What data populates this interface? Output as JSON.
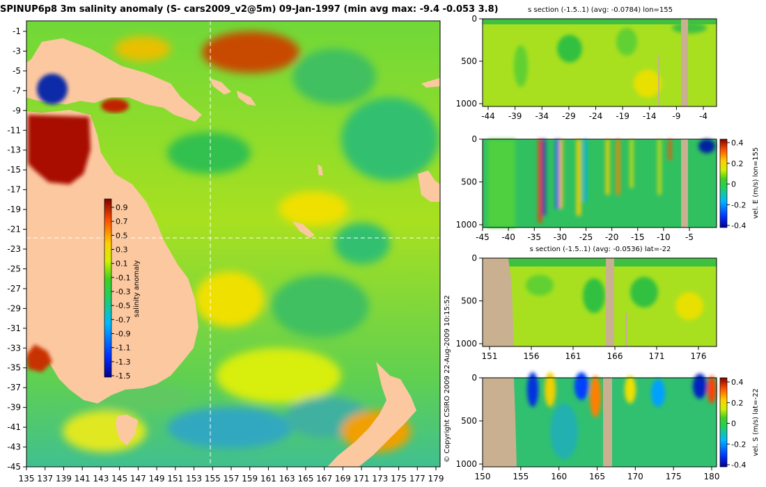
{
  "title": "SPINUP6p8 3m salinity anomaly (S- cars2009_v2@5m) 09-Jan-1997 (min avg max: -9.4 -0.053 3.8)",
  "copyright": "© Copyright CSIRO 2009   22-Aug-2009 10:15:52",
  "colors": {
    "land": "#fcc8a0",
    "section_land": "#c8b090",
    "crosshair": "#ffffff"
  },
  "map": {
    "lon_ticks": [
      "135",
      "137",
      "139",
      "141",
      "143",
      "145",
      "147",
      "149",
      "151",
      "153",
      "155",
      "157",
      "159",
      "161",
      "163",
      "165",
      "167",
      "169",
      "171",
      "173",
      "175",
      "177",
      "179"
    ],
    "lat_ticks": [
      "-1",
      "-3",
      "-5",
      "-7",
      "-9",
      "-11",
      "-13",
      "-15",
      "-17",
      "-19",
      "-21",
      "-23",
      "-25",
      "-27",
      "-29",
      "-31",
      "-33",
      "-35",
      "-37",
      "-39",
      "-41",
      "-43",
      "-45"
    ],
    "crosshair": {
      "lon": 155,
      "lat": -22
    },
    "colorbar": {
      "label": "salinity anomaly",
      "ticks": [
        "0.9",
        "0.7",
        "0.5",
        "0.3",
        "0.1",
        "-0.1",
        "-0.3",
        "-0.5",
        "-0.7",
        "-0.9",
        "-1.1",
        "-1.3",
        "-1.5"
      ]
    }
  },
  "sections": [
    {
      "title": "s section (-1.5..1) (avg: -0.0784) lon=155",
      "x_ticks": [
        "-44",
        "-39",
        "-34",
        "-29",
        "-24",
        "-19",
        "-14",
        "-9",
        "-4"
      ],
      "y_ticks": [
        "0",
        "500",
        "1000"
      ],
      "colorbar": null
    },
    {
      "title": "",
      "x_ticks": [
        "-45",
        "-40",
        "-35",
        "-30",
        "-25",
        "-20",
        "-15",
        "-10",
        "-5"
      ],
      "y_ticks": [
        "0",
        "500",
        "1000"
      ],
      "colorbar": {
        "label": "vel. E (m/s) lon=155",
        "ticks": [
          "0.4",
          "0.2",
          "0",
          "-0.2",
          "-0.4"
        ]
      }
    },
    {
      "title": "s section (-1.5..1) (avg: -0.0536) lat=-22",
      "x_ticks": [
        "151",
        "156",
        "161",
        "166",
        "171",
        "176"
      ],
      "y_ticks": [
        "0",
        "500",
        "1000"
      ],
      "colorbar": null
    },
    {
      "title": "",
      "x_ticks": [
        "150",
        "155",
        "160",
        "165",
        "170",
        "175",
        "180"
      ],
      "y_ticks": [
        "0",
        "500",
        "1000"
      ],
      "colorbar": {
        "label": "vel. S (m/s) lat=-22",
        "ticks": [
          "0.4",
          "0.2",
          "0",
          "-0.2",
          "-0.4"
        ]
      }
    }
  ]
}
